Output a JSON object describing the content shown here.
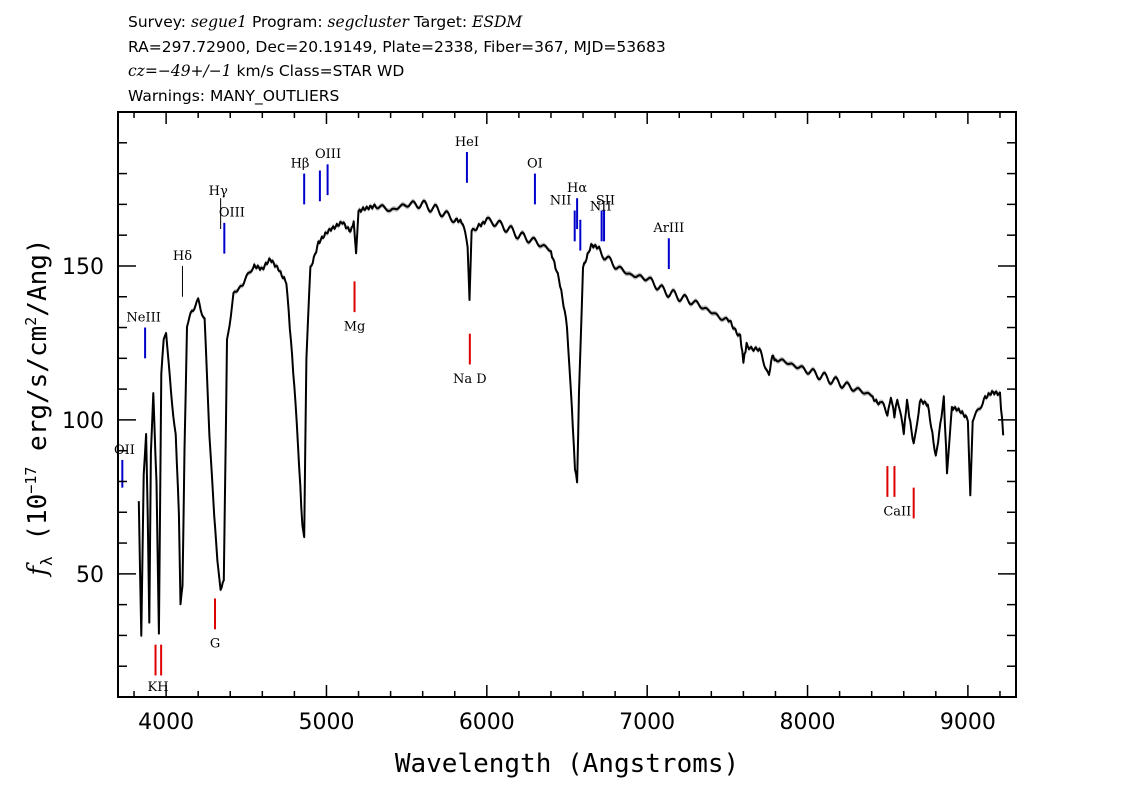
{
  "header": {
    "line1": {
      "survey_label": "Survey:",
      "survey": "segue1",
      "program_label": "Program:",
      "program": "segcluster",
      "target_label": "Target:",
      "target": "ESDM"
    },
    "line2": "RA=297.72900, Dec=20.19149, Plate=2338, Fiber=367, MJD=53683",
    "line3": {
      "cz_label": "cz",
      "cz_value": "=−49+/−1",
      "cz_unit": " km/s Class=STAR WD"
    },
    "line4": "Warnings: MANY_OUTLIERS"
  },
  "chart_data": {
    "type": "line",
    "xlabel": "Wavelength (Angstroms)",
    "ylabel": "f_λ (10^-17 erg/s/cm^2/Ang)",
    "ylabel_parts": {
      "symbol": "f",
      "subscript": "λ",
      "open": " (10",
      "exp1": "−17",
      "mid": " erg/s/cm",
      "exp2": "2",
      "close": "/Ang)"
    },
    "xlim": [
      3700,
      9300
    ],
    "ylim": [
      10,
      200
    ],
    "xticks": [
      4000,
      5000,
      6000,
      7000,
      8000,
      9000
    ],
    "yticks": [
      50,
      100,
      150
    ],
    "xtick_labels": [
      "4000",
      "5000",
      "6000",
      "7000",
      "8000",
      "9000"
    ],
    "ytick_labels": [
      "50",
      "100",
      "150"
    ],
    "spectrum": {
      "color": "#000000",
      "error_color": "#aaaaaa",
      "x": [
        3830,
        3845,
        3860,
        3875,
        3885,
        3895,
        3905,
        3920,
        3940,
        3955,
        3970,
        3985,
        4000,
        4030,
        4060,
        4080,
        4090,
        4102,
        4115,
        4130,
        4160,
        4200,
        4240,
        4270,
        4300,
        4320,
        4340,
        4360,
        4380,
        4420,
        4480,
        4550,
        4600,
        4650,
        4700,
        4750,
        4800,
        4830,
        4850,
        4861,
        4875,
        4900,
        4950,
        5000,
        5050,
        5100,
        5150,
        5170,
        5185,
        5200,
        5250,
        5300,
        5400,
        5500,
        5600,
        5700,
        5800,
        5850,
        5880,
        5892,
        5905,
        5950,
        6000,
        6100,
        6200,
        6300,
        6400,
        6450,
        6500,
        6530,
        6550,
        6563,
        6575,
        6600,
        6650,
        6700,
        6800,
        6900,
        7000,
        7100,
        7200,
        7300,
        7400,
        7500,
        7580,
        7600,
        7620,
        7700,
        7760,
        7780,
        7800,
        7900,
        8000,
        8100,
        8200,
        8300,
        8400,
        8450,
        8498,
        8520,
        8542,
        8560,
        8600,
        8620,
        8662,
        8700,
        8750,
        8800,
        8850,
        8870,
        8900,
        8950,
        9000,
        9015,
        9030,
        9100,
        9150,
        9200,
        9220
      ],
      "y": [
        75,
        30,
        82,
        95,
        70,
        33,
        90,
        110,
        80,
        32,
        115,
        125,
        128,
        110,
        95,
        70,
        40,
        45,
        90,
        130,
        135,
        138,
        132,
        95,
        70,
        55,
        45,
        48,
        125,
        140,
        145,
        150,
        148,
        152,
        150,
        145,
        110,
        85,
        65,
        62,
        120,
        150,
        158,
        160,
        162,
        165,
        162,
        165,
        155,
        167,
        168,
        170,
        168,
        170,
        170,
        168,
        165,
        163,
        157,
        138,
        160,
        164,
        165,
        163,
        160,
        158,
        155,
        145,
        130,
        105,
        85,
        80,
        108,
        150,
        156,
        155,
        150,
        147,
        146,
        142,
        140,
        138,
        135,
        132,
        128,
        120,
        125,
        122,
        115,
        122,
        120,
        118,
        116,
        114,
        112,
        110,
        108,
        106,
        102,
        108,
        100,
        108,
        96,
        106,
        92,
        106,
        104,
        88,
        108,
        84,
        104,
        102,
        100,
        76,
        100,
        107,
        108,
        108,
        95
      ]
    },
    "lines_blue": [
      {
        "label": "OII",
        "wave": 3727,
        "y1": 78,
        "y2": 87
      },
      {
        "label": "NeIII",
        "wave": 3869,
        "y1": 120,
        "y2": 130
      },
      {
        "label": "OIII",
        "wave": 4363,
        "y1": 154,
        "y2": 164
      },
      {
        "label": "Hβ",
        "wave": 4861,
        "y1": 170,
        "y2": 180
      },
      {
        "label": "OIII",
        "wave": 4959,
        "y1": 171,
        "y2": 181
      },
      {
        "label": "OIII",
        "wave": 5007,
        "y1": 173,
        "y2": 183
      },
      {
        "label": "HeI",
        "wave": 5876,
        "y1": 177,
        "y2": 187
      },
      {
        "label": "OI",
        "wave": 6300,
        "y1": 170,
        "y2": 180
      },
      {
        "label": "NII",
        "wave": 6548,
        "y1": 158,
        "y2": 168
      },
      {
        "label": "Hα",
        "wave": 6563,
        "y1": 162,
        "y2": 172
      },
      {
        "label": "NII",
        "wave": 6583,
        "y1": 155,
        "y2": 165
      },
      {
        "label": "SII",
        "wave": 6716,
        "y1": 158,
        "y2": 168
      },
      {
        "label": "SII",
        "wave": 6731,
        "y1": 158,
        "y2": 168
      },
      {
        "label": "ArIII",
        "wave": 7135,
        "y1": 149,
        "y2": 159
      }
    ],
    "lines_black": [
      {
        "label": "Hδ",
        "wave": 4102,
        "y1": 140,
        "y2": 150
      },
      {
        "label": "Hγ",
        "wave": 4340,
        "y1": 162,
        "y2": 172
      }
    ],
    "lines_red": [
      {
        "label": "K",
        "wave": 3934,
        "y1": 17,
        "y2": 27
      },
      {
        "label": "H",
        "wave": 3969,
        "y1": 17,
        "y2": 27
      },
      {
        "label": "G",
        "wave": 4305,
        "y1": 32,
        "y2": 42
      },
      {
        "label": "Mg",
        "wave": 5175,
        "y1": 135,
        "y2": 145
      },
      {
        "label": "Na D",
        "wave": 5894,
        "y1": 118,
        "y2": 128
      },
      {
        "label": "CaII",
        "wave": 8498,
        "y1": 75,
        "y2": 85
      },
      {
        "label": "CaII",
        "wave": 8542,
        "y1": 75,
        "y2": 85
      },
      {
        "label": "CaII",
        "wave": 8662,
        "y1": 68,
        "y2": 78
      }
    ],
    "line_labels": [
      {
        "text": "OII",
        "wave": 3740,
        "y": 89
      },
      {
        "text": "NeIII",
        "wave": 3860,
        "y": 132
      },
      {
        "text": "Hδ",
        "wave": 4102,
        "y": 152
      },
      {
        "text": "Hγ",
        "wave": 4325,
        "y": 173
      },
      {
        "text": "OIII",
        "wave": 4410,
        "y": 166
      },
      {
        "text": "Hβ",
        "wave": 4835,
        "y": 182
      },
      {
        "text": "OIII",
        "wave": 5010,
        "y": 185
      },
      {
        "text": "HeI",
        "wave": 5876,
        "y": 189
      },
      {
        "text": "OI",
        "wave": 6300,
        "y": 182
      },
      {
        "text": "NII",
        "wave": 6460,
        "y": 170
      },
      {
        "text": "Hα",
        "wave": 6563,
        "y": 174
      },
      {
        "text": "NII",
        "wave": 6710,
        "y": 168
      },
      {
        "text": "SII",
        "wave": 6740,
        "y": 170
      },
      {
        "text": "ArIII",
        "wave": 7135,
        "y": 161
      },
      {
        "text": "Mg",
        "wave": 5175,
        "y": 129
      },
      {
        "text": "Na D",
        "wave": 5894,
        "y": 112
      },
      {
        "text": "G",
        "wave": 4305,
        "y": 26
      },
      {
        "text": "KH",
        "wave": 3950,
        "y": 12
      },
      {
        "text": "CaII",
        "wave": 8560,
        "y": 69
      }
    ],
    "colors": {
      "blue": "#0000cc",
      "red": "#dd0000",
      "black": "#000000"
    }
  }
}
